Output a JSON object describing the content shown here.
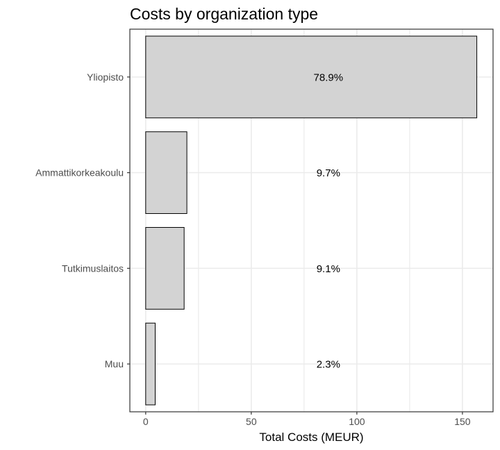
{
  "chart_data": {
    "type": "bar",
    "orientation": "horizontal",
    "title": "Costs by organization type",
    "xlabel": "Total Costs (MEUR)",
    "ylabel": "",
    "categories": [
      "Yliopisto",
      "Ammattikorkeakoulu",
      "Tutkimuslaitos",
      "Muu"
    ],
    "values": [
      156.8,
      19.5,
      18.2,
      4.5
    ],
    "share_labels": [
      "78.9%",
      "9.7%",
      "9.1%",
      "2.3%"
    ],
    "xlim": [
      -7.5,
      164.5
    ],
    "xticks": [
      0,
      50,
      100,
      150
    ],
    "grid": true,
    "legend": "none",
    "colors": {
      "bar_fill": "#d3d3d3",
      "bar_stroke": "#000000",
      "grid": "#ebebeb",
      "panel_border": "#333333"
    }
  }
}
